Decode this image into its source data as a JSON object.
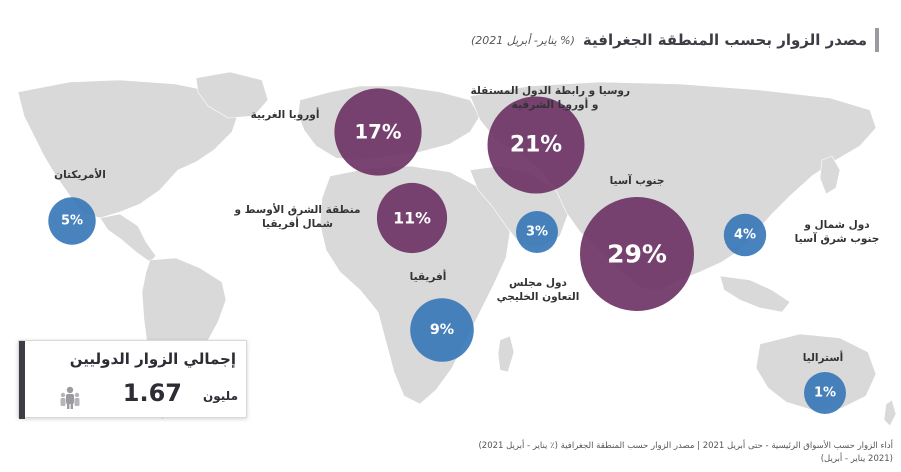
{
  "header": {
    "title": "مصدر الزوار بحسب المنطقة الجغرافية",
    "subtitle": "(% يناير- أبريل 2021)"
  },
  "total_card": {
    "label": "إجمالي الزوار الدوليين",
    "value": "1.67",
    "unit": "مليون",
    "icon": "people-icon"
  },
  "footer": {
    "line1": "أداء الزوار حسب الأسواق الرئيسية - حتى أبريل 2021 | مصدر الزوار حسب المنطقة الجغرافية (٪ يناير - أبريل 2021)",
    "line2": "(2021 يناير - أبريل)"
  },
  "colors": {
    "purple": "#6e3466",
    "blue": "#3a78b8",
    "map_land": "#d9d9d9"
  },
  "chart_data": {
    "type": "bubble-map",
    "title": "مصدر الزوار بحسب المنطقة الجغرافية",
    "subtitle": "(% يناير- أبريل 2021)",
    "unit": "%",
    "regions": [
      {
        "name": "الأمريكتان",
        "value": 5,
        "color": "blue",
        "label_lines": [
          "الأمريكتان"
        ]
      },
      {
        "name": "أوروبا الغربية",
        "value": 17,
        "color": "purple",
        "label_lines": [
          "أوروبا الغربية"
        ]
      },
      {
        "name": "روسيا و رابطة الدول المستقلة و أوروبا الشرقية",
        "value": 21,
        "color": "purple",
        "label_lines": [
          "روسيا و رابطة الدول المستقلة",
          "و أوروبا الشرقية"
        ]
      },
      {
        "name": "منطقة الشرق الأوسط و شمال أفريقيا",
        "value": 11,
        "color": "purple",
        "label_lines": [
          "منطقة الشرق الأوسط و",
          "شمال أفريقيا"
        ]
      },
      {
        "name": "دول مجلس التعاون الخليجي",
        "value": 3,
        "color": "blue",
        "label_lines": [
          "دول مجلس",
          "التعاون الخليجي"
        ]
      },
      {
        "name": "جنوب آسيا",
        "value": 29,
        "color": "purple",
        "label_lines": [
          "جنوب آسيا"
        ]
      },
      {
        "name": "دول شمال و جنوب شرق آسيا",
        "value": 4,
        "color": "blue",
        "label_lines": [
          "دول شمال و",
          "جنوب شرق آسيا"
        ]
      },
      {
        "name": "أفريقيا",
        "value": 9,
        "color": "blue",
        "label_lines": [
          "أفريقيا"
        ]
      },
      {
        "name": "أستراليا",
        "value": 1,
        "color": "blue",
        "label_lines": [
          "أستراليا"
        ]
      }
    ]
  }
}
